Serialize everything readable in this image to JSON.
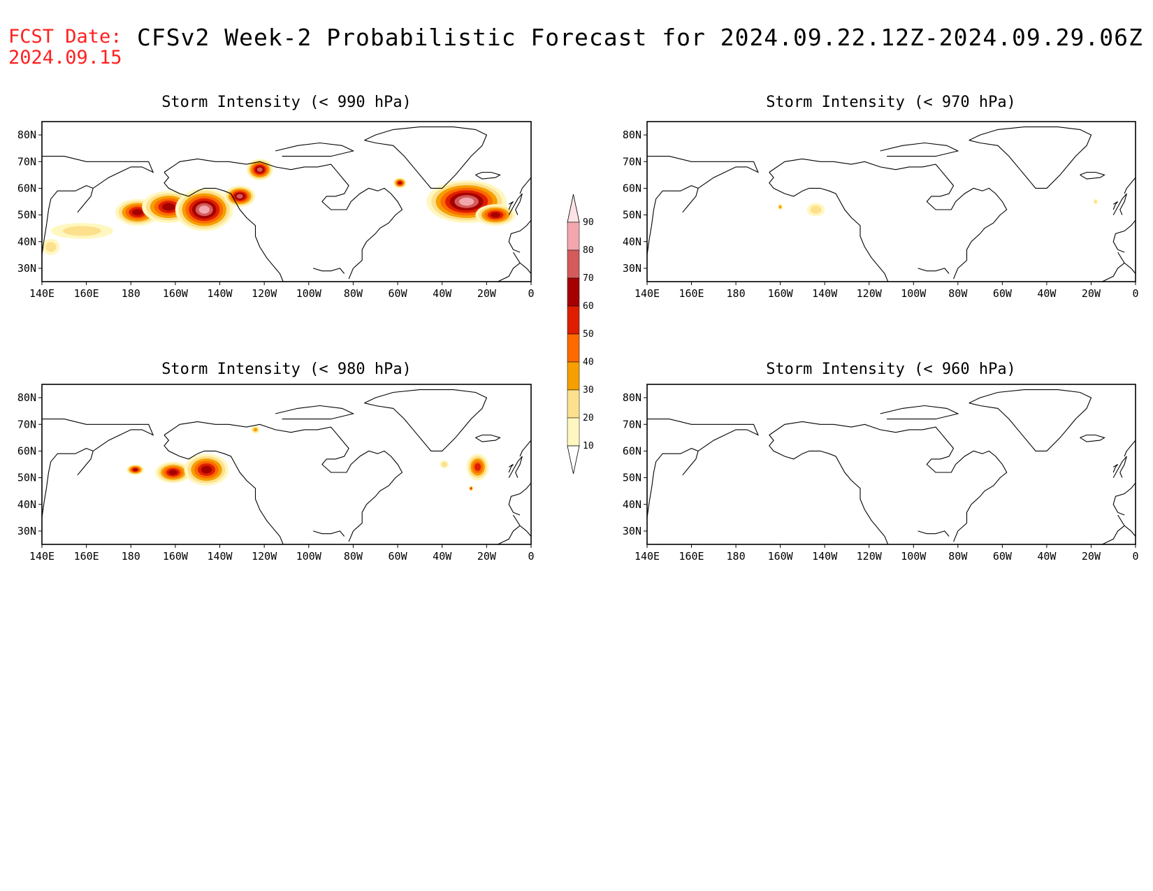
{
  "header": {
    "fcst_date": "FCST Date:\n2024.09.15",
    "title": "CFSv2 Week-2 Probabilistic Forecast for 2024.09.22.12Z-2024.09.29.06Z"
  },
  "axes": {
    "lon_labels": [
      "140E",
      "160E",
      "180",
      "160W",
      "140W",
      "120W",
      "100W",
      "80W",
      "60W",
      "40W",
      "20W",
      "0"
    ],
    "lat_labels": [
      "80N",
      "70N",
      "60N",
      "50N",
      "40N",
      "30N"
    ],
    "lon_values": [
      140,
      160,
      180,
      200,
      220,
      240,
      260,
      280,
      300,
      320,
      340,
      360
    ],
    "lat_values": [
      80,
      70,
      60,
      50,
      40,
      30
    ],
    "lon_range": [
      140,
      360
    ],
    "lat_range": [
      25,
      85
    ]
  },
  "colorbar": {
    "levels": [
      "90",
      "80",
      "70",
      "60",
      "50",
      "40",
      "30",
      "20",
      "10"
    ],
    "colors": [
      "#fde3e6",
      "#f1a7ad",
      "#d45b5b",
      "#a50000",
      "#df1e00",
      "#fc6a00",
      "#f59f00",
      "#fde08d",
      "#fff7c0"
    ]
  },
  "panels": [
    {
      "title": "Storm Intensity (< 990 hPa)",
      "blobs": [
        {
          "lon": 183,
          "lat": 51,
          "rx": 10,
          "ry": 5,
          "level": 60
        },
        {
          "lon": 197,
          "lat": 53,
          "rx": 12,
          "ry": 6,
          "level": 60
        },
        {
          "lon": 213,
          "lat": 52,
          "rx": 13,
          "ry": 8,
          "level": 80
        },
        {
          "lon": 229,
          "lat": 57,
          "rx": 7,
          "ry": 4,
          "level": 70
        },
        {
          "lon": 158,
          "lat": 44,
          "rx": 14,
          "ry": 3,
          "level": 20
        },
        {
          "lon": 144,
          "lat": 38,
          "rx": 4,
          "ry": 3,
          "level": 20
        },
        {
          "lon": 238,
          "lat": 67,
          "rx": 6,
          "ry": 4,
          "level": 70
        },
        {
          "lon": 301,
          "lat": 62,
          "rx": 3,
          "ry": 2,
          "level": 60
        },
        {
          "lon": 331,
          "lat": 55,
          "rx": 18,
          "ry": 8,
          "level": 80
        },
        {
          "lon": 344,
          "lat": 50,
          "rx": 9,
          "ry": 4,
          "level": 60
        }
      ]
    },
    {
      "title": "Storm Intensity (< 970 hPa)",
      "blobs": [
        {
          "lon": 200,
          "lat": 53,
          "rx": 1.2,
          "ry": 1.2,
          "level": 30
        },
        {
          "lon": 216,
          "lat": 52,
          "rx": 4,
          "ry": 2.5,
          "level": 20
        },
        {
          "lon": 342,
          "lat": 55,
          "rx": 1,
          "ry": 1,
          "level": 20
        }
      ]
    },
    {
      "title": "Storm Intensity (< 980 hPa)",
      "blobs": [
        {
          "lon": 182,
          "lat": 53,
          "rx": 4,
          "ry": 2,
          "level": 60
        },
        {
          "lon": 199,
          "lat": 52,
          "rx": 8,
          "ry": 4,
          "level": 60
        },
        {
          "lon": 214,
          "lat": 53,
          "rx": 10,
          "ry": 6,
          "level": 60
        },
        {
          "lon": 236,
          "lat": 68,
          "rx": 2,
          "ry": 1.5,
          "level": 30
        },
        {
          "lon": 321,
          "lat": 55,
          "rx": 2,
          "ry": 1.5,
          "level": 20
        },
        {
          "lon": 336,
          "lat": 54,
          "rx": 5,
          "ry": 5,
          "level": 50
        },
        {
          "lon": 333,
          "lat": 46,
          "rx": 1,
          "ry": 1,
          "level": 50
        }
      ]
    },
    {
      "title": "Storm Intensity (< 960 hPa)",
      "blobs": []
    }
  ]
}
